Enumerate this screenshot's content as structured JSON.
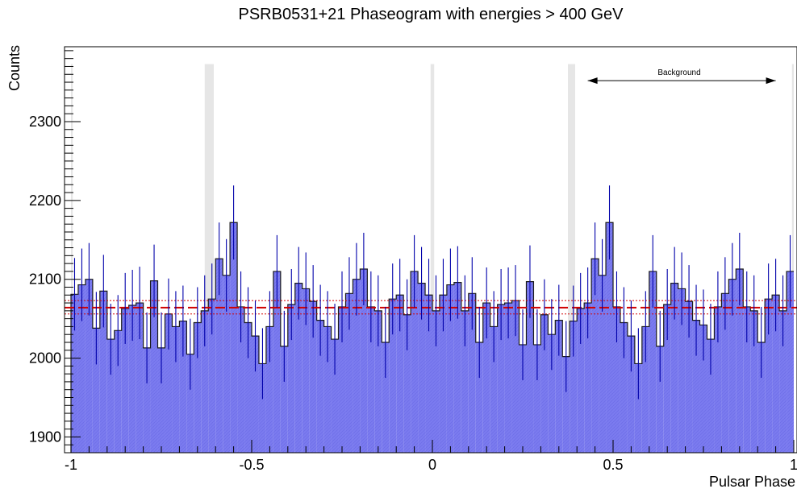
{
  "chart_data": {
    "type": "bar",
    "title": "PSRB0531+21 Phaseogram with energies > 400 GeV",
    "xlabel": "Pulsar Phase",
    "ylabel": "Counts",
    "xlim": [
      -1.0,
      1.0
    ],
    "ylim": [
      1880,
      2395
    ],
    "x_ticks": [
      -1,
      -0.5,
      0,
      0.5,
      1
    ],
    "x_tick_labels": [
      "-1",
      "-0.5",
      "0",
      "0.5",
      "1"
    ],
    "y_ticks": [
      1900,
      2000,
      2100,
      2200,
      2300
    ],
    "y_tick_labels": [
      "1900",
      "2000",
      "2100",
      "2200",
      "2300"
    ],
    "bin_width": 0.02,
    "x_start": -1.0,
    "values": [
      2081,
      2093,
      2100,
      2038,
      2085,
      2024,
      2035,
      2063,
      2067,
      2070,
      2013,
      2098,
      2013,
      2056,
      2040,
      2047,
      2005,
      2045,
      2060,
      2075,
      2126,
      2105,
      2172,
      2065,
      2045,
      2028,
      1993,
      2040,
      2110,
      2015,
      2068,
      2095,
      2088,
      2072,
      2048,
      2040,
      2024,
      2065,
      2082,
      2100,
      2113,
      2065,
      2060,
      2020,
      2075,
      2080,
      2055,
      2110,
      2095,
      2080,
      2060,
      2080,
      2093,
      2096,
      2060,
      2082,
      2020,
      2070,
      2040,
      2068,
      2070,
      2073,
      2017,
      2097,
      2017,
      2055,
      2030,
      2048,
      2002,
      2047,
      2063,
      2070,
      2126,
      2105,
      2172,
      2065,
      2045,
      2028,
      1993,
      2040,
      2110,
      2015,
      2068,
      2095,
      2088,
      2072,
      2048,
      2042,
      2024,
      2065,
      2082,
      2100,
      2113,
      2065,
      2060,
      2020,
      2075,
      2080,
      2060,
      2110
    ],
    "errors": [
      46,
      46,
      46,
      46,
      46,
      45,
      45,
      45,
      45,
      46,
      45,
      46,
      45,
      45,
      45,
      45,
      45,
      45,
      45,
      45,
      46,
      46,
      47,
      45,
      45,
      45,
      45,
      45,
      46,
      45,
      45,
      46,
      46,
      46,
      45,
      45,
      45,
      45,
      46,
      46,
      46,
      45,
      45,
      45,
      45,
      46,
      45,
      46,
      46,
      46,
      45,
      46,
      46,
      46,
      45,
      46,
      45,
      45,
      45,
      45,
      45,
      45,
      45,
      46,
      45,
      45,
      45,
      45,
      45,
      45,
      45,
      45,
      46,
      46,
      47,
      45,
      45,
      45,
      45,
      45,
      46,
      45,
      45,
      46,
      46,
      46,
      45,
      45,
      45,
      45,
      46,
      46,
      46,
      45,
      45,
      45,
      45,
      46,
      45,
      46
    ],
    "background_level": 2064,
    "background_band": [
      2056,
      2073
    ],
    "pulse_regions": [
      [
        -1.0,
        -0.995
      ],
      [
        -0.63,
        -0.605
      ],
      [
        -0.005,
        0.005
      ],
      [
        0.375,
        0.395
      ],
      [
        0.995,
        1.0
      ]
    ],
    "annotation": {
      "text": "Background",
      "x_from": 0.43,
      "x_to": 0.95,
      "y": 2352
    },
    "grid": false,
    "colors": {
      "fill": "#7b7bef",
      "outline": "#1a1a1a",
      "error_bar": "#0000aa",
      "background_line": "#d10000",
      "pulse_band": "#e6e6e6"
    }
  }
}
